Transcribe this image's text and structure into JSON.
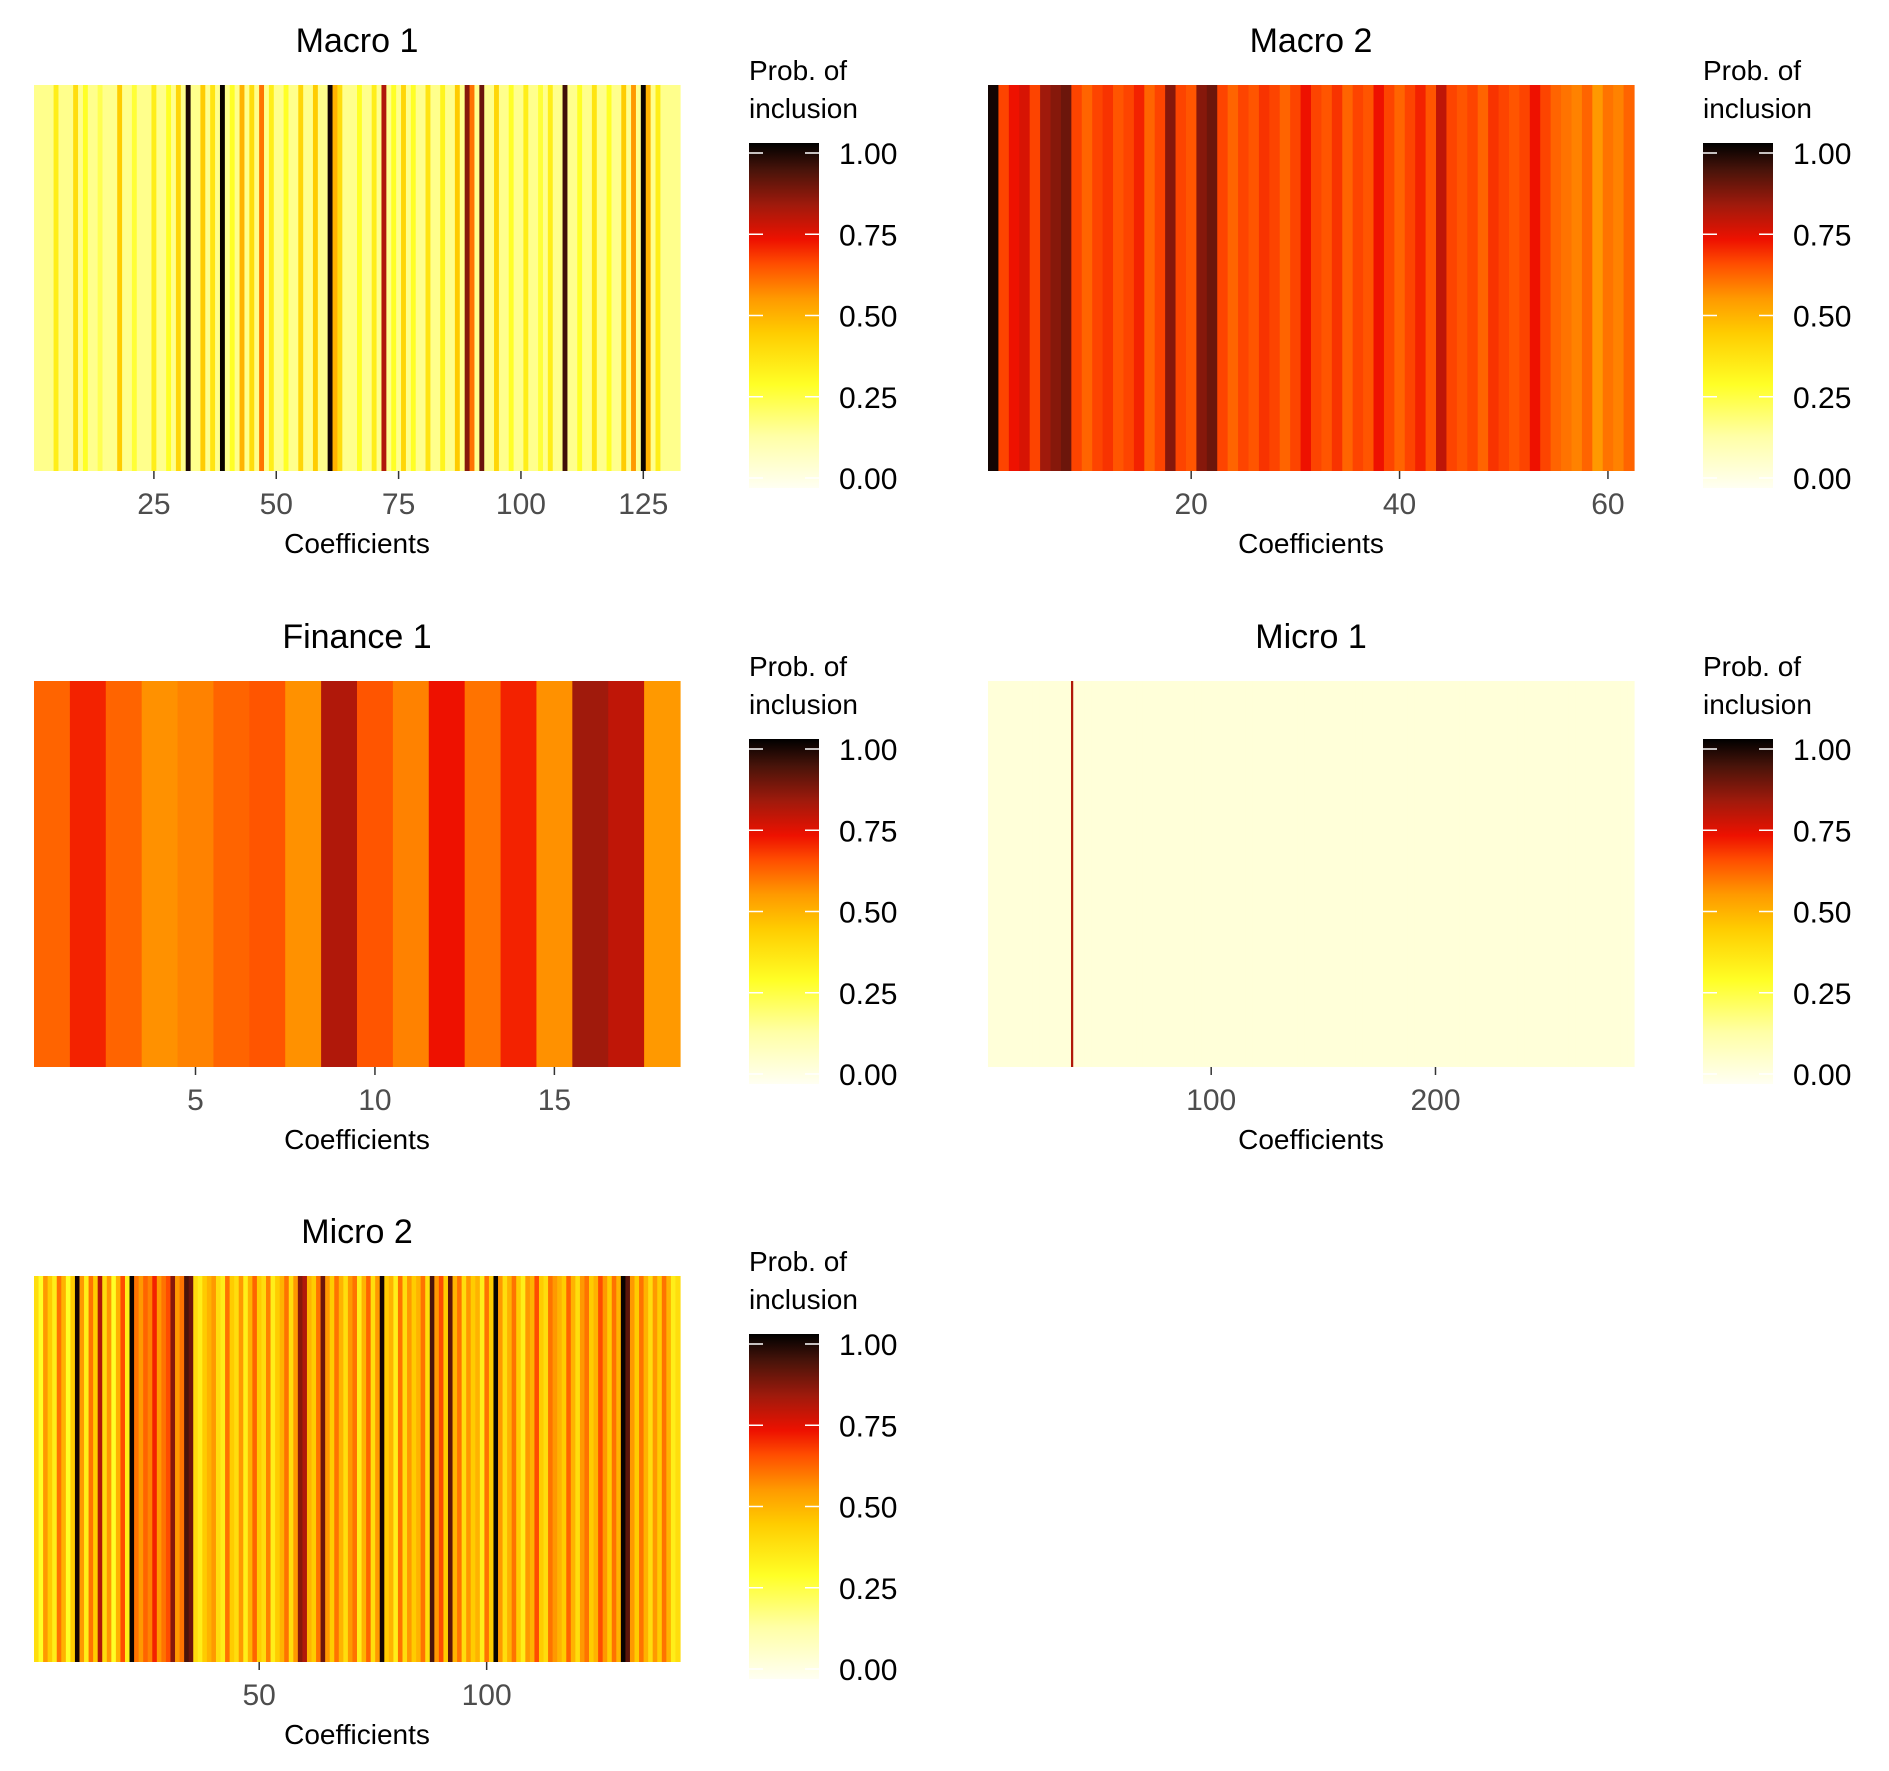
{
  "figure": {
    "legend_title_line1": "Prob. of",
    "legend_title_line2": "inclusion",
    "legend_breaks": [
      "1.00",
      "0.75",
      "0.50",
      "0.25",
      "0.00"
    ],
    "colorscale": [
      {
        "value": 0.0,
        "color": "#fffff2"
      },
      {
        "value": 0.15,
        "color": "#ffffa6"
      },
      {
        "value": 0.3,
        "color": "#ffff26"
      },
      {
        "value": 0.45,
        "color": "#ffcc00"
      },
      {
        "value": 0.55,
        "color": "#ff9900"
      },
      {
        "value": 0.65,
        "color": "#ff4d00"
      },
      {
        "value": 0.72,
        "color": "#ee1100"
      },
      {
        "value": 0.82,
        "color": "#a01a0c"
      },
      {
        "value": 0.92,
        "color": "#4a140a"
      },
      {
        "value": 1.0,
        "color": "#000000"
      }
    ]
  },
  "chart_data": [
    {
      "type": "heatmap",
      "title": "Macro 1",
      "xlabel": "Coefficients",
      "ylabel": "",
      "xlim": [
        0.5,
        132.5
      ],
      "xticks": [
        25,
        50,
        75,
        100,
        125
      ],
      "xtick_labels": [
        "25",
        "50",
        "75",
        "100",
        "125"
      ],
      "n": 132,
      "base_value": 0.18,
      "overrides": {
        "5": 0.35,
        "9": 0.4,
        "11": 0.3,
        "14": 0.25,
        "18": 0.45,
        "21": 0.28,
        "25": 0.35,
        "28": 0.3,
        "30": 0.42,
        "32": 0.97,
        "35": 0.45,
        "37": 0.38,
        "39": 0.99,
        "41": 0.3,
        "43": 0.5,
        "45": 0.4,
        "47": 0.6,
        "49": 0.35,
        "52": 0.3,
        "55": 0.42,
        "58": 0.45,
        "61": 0.98,
        "62": 0.5,
        "63": 0.4,
        "67": 0.3,
        "70": 0.35,
        "72": 0.8,
        "74": 0.3,
        "76": 0.42,
        "78": 0.3,
        "81": 0.38,
        "84": 0.33,
        "87": 0.45,
        "89": 0.85,
        "90": 0.6,
        "92": 0.88,
        "95": 0.42,
        "98": 0.3,
        "101": 0.35,
        "104": 0.28,
        "106": 0.35,
        "109": 0.93,
        "112": 0.3,
        "115": 0.38,
        "118": 0.3,
        "121": 0.45,
        "123": 0.55,
        "125": 0.99,
        "126": 0.5,
        "128": 0.35
      }
    },
    {
      "type": "heatmap",
      "title": "Macro 2",
      "xlabel": "Coefficients",
      "ylabel": "",
      "xlim": [
        0.5,
        62.5
      ],
      "xticks": [
        20,
        40,
        60
      ],
      "xtick_labels": [
        "20",
        "40",
        "60"
      ],
      "n": 62,
      "values": [
        0.98,
        0.66,
        0.72,
        0.75,
        0.66,
        0.82,
        0.85,
        0.88,
        0.66,
        0.62,
        0.66,
        0.68,
        0.64,
        0.66,
        0.7,
        0.62,
        0.66,
        0.85,
        0.66,
        0.64,
        0.85,
        0.88,
        0.66,
        0.62,
        0.66,
        0.64,
        0.68,
        0.66,
        0.62,
        0.66,
        0.72,
        0.66,
        0.64,
        0.68,
        0.62,
        0.66,
        0.64,
        0.72,
        0.66,
        0.62,
        0.66,
        0.7,
        0.64,
        0.78,
        0.66,
        0.64,
        0.66,
        0.62,
        0.68,
        0.66,
        0.64,
        0.66,
        0.72,
        0.66,
        0.62,
        0.6,
        0.58,
        0.62,
        0.55,
        0.6,
        0.58,
        0.62
      ]
    },
    {
      "type": "heatmap",
      "title": "Finance 1",
      "xlabel": "Coefficients",
      "ylabel": "",
      "xlim": [
        0.5,
        18.5
      ],
      "xticks": [
        5,
        10,
        15
      ],
      "xtick_labels": [
        "5",
        "10",
        "15"
      ],
      "n": 18,
      "values": [
        0.62,
        0.7,
        0.62,
        0.56,
        0.58,
        0.62,
        0.64,
        0.56,
        0.8,
        0.64,
        0.58,
        0.72,
        0.6,
        0.7,
        0.56,
        0.82,
        0.78,
        0.55
      ]
    },
    {
      "type": "heatmap",
      "title": "Micro 1",
      "xlabel": "Coefficients",
      "ylabel": "",
      "xlim": [
        0.5,
        288.5
      ],
      "xticks": [
        100,
        200
      ],
      "xtick_labels": [
        "100",
        "200"
      ],
      "n": 288,
      "base_value": 0.05,
      "overrides": {
        "38": 0.8
      }
    },
    {
      "type": "heatmap",
      "title": "Micro 2",
      "xlabel": "Coefficients",
      "ylabel": "",
      "xlim": [
        0.5,
        142.5
      ],
      "xticks": [
        50,
        100
      ],
      "xtick_labels": [
        "50",
        "100"
      ],
      "n": 142,
      "values": [
        0.4,
        0.3,
        0.55,
        0.45,
        0.35,
        0.6,
        0.5,
        0.3,
        0.45,
        0.98,
        0.55,
        0.35,
        0.6,
        0.45,
        0.8,
        0.4,
        0.55,
        0.3,
        0.5,
        0.65,
        0.35,
        0.99,
        0.6,
        0.55,
        0.62,
        0.58,
        0.7,
        0.55,
        0.6,
        0.65,
        0.85,
        0.55,
        0.6,
        0.92,
        0.88,
        0.4,
        0.35,
        0.45,
        0.5,
        0.55,
        0.4,
        0.35,
        0.6,
        0.45,
        0.4,
        0.55,
        0.35,
        0.5,
        0.62,
        0.45,
        0.4,
        0.58,
        0.35,
        0.45,
        0.5,
        0.6,
        0.4,
        0.55,
        0.85,
        0.8,
        0.5,
        0.45,
        0.6,
        0.88,
        0.55,
        0.45,
        0.6,
        0.5,
        0.4,
        0.55,
        0.6,
        0.35,
        0.5,
        0.62,
        0.4,
        0.55,
        0.98,
        0.45,
        0.5,
        0.35,
        0.6,
        0.4,
        0.55,
        0.45,
        0.5,
        0.6,
        0.4,
        0.92,
        0.55,
        0.65,
        0.45,
        0.9,
        0.5,
        0.6,
        0.4,
        0.55,
        0.45,
        0.5,
        0.35,
        0.6,
        0.45,
        0.99,
        0.55,
        0.4,
        0.5,
        0.6,
        0.45,
        0.35,
        0.55,
        0.5,
        0.65,
        0.45,
        0.4,
        0.6,
        0.55,
        0.5,
        0.45,
        0.62,
        0.5,
        0.4,
        0.55,
        0.6,
        0.45,
        0.5,
        0.65,
        0.55,
        0.45,
        0.6,
        0.5,
        0.99,
        0.9,
        0.55,
        0.45,
        0.6,
        0.5,
        0.4,
        0.55,
        0.45,
        0.6,
        0.5,
        0.35,
        0.4
      ]
    }
  ]
}
